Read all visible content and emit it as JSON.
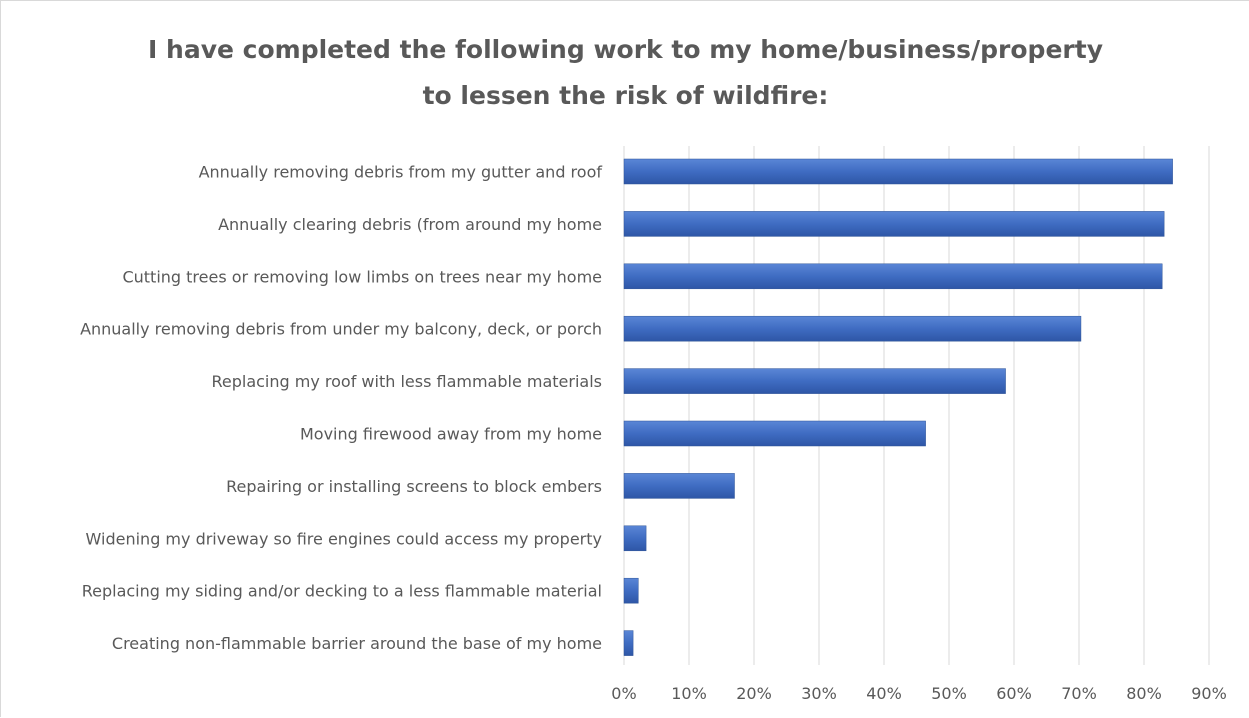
{
  "chart_data": {
    "type": "bar",
    "orientation": "horizontal",
    "title": "I have completed the following work to my home/business/property to lessen the risk of wildfire:",
    "title_lines": [
      "I have completed the following work to my home/business/property",
      "to lessen the risk of wildfire:"
    ],
    "categories": [
      "Annually removing debris from my gutter and roof",
      "Annually clearing debris (from around my home",
      "Cutting trees or removing low limbs on trees near my home",
      "Annually removing debris from under my balcony, deck, or porch",
      "Replacing my roof with less flammable materials",
      "Moving firewood away from my home",
      "Repairing or installing screens to block embers",
      "Widening my driveway so fire engines could access my property",
      "Replacing my siding and/or decking to a less flammable material",
      "Creating non-flammable barrier around the base of my home"
    ],
    "values": [
      84.4,
      83.1,
      82.8,
      70.3,
      58.7,
      46.4,
      17.0,
      3.4,
      2.2,
      1.4
    ],
    "xlim": [
      0,
      90
    ],
    "x_ticks": [
      "0%",
      "10%",
      "20%",
      "30%",
      "40%",
      "50%",
      "60%",
      "70%",
      "80%",
      "90%"
    ],
    "xlabel": "",
    "ylabel": "",
    "grid": true,
    "legend": "none",
    "bar_color": "#4472c4"
  }
}
